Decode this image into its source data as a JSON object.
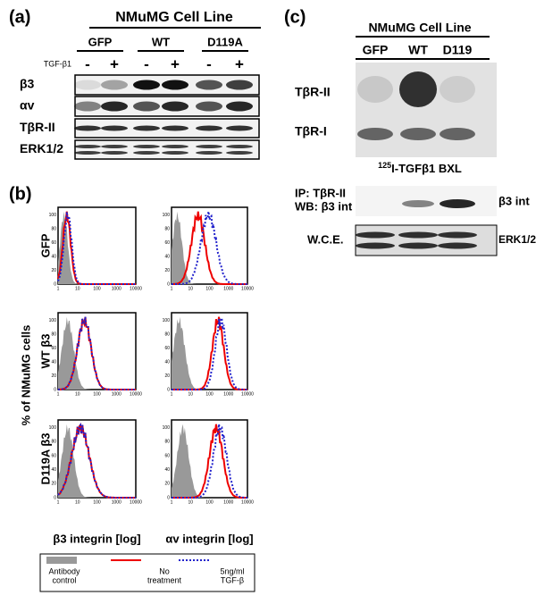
{
  "panel_a": {
    "label": "(a)",
    "title": "NMuMG Cell Line",
    "groups": [
      "GFP",
      "WT",
      "D119A"
    ],
    "treatment": "TGF-β1",
    "signs": [
      "-",
      "+",
      "-",
      "+",
      "-",
      "+"
    ],
    "rows": [
      "β3",
      "αv",
      "TβR-II",
      "ERK1/2"
    ]
  },
  "panel_b": {
    "label": "(b)",
    "y_label": "% of NMuMG cells",
    "row_labels": [
      "GFP",
      "WT β3",
      "D119A β3"
    ],
    "x_labels": [
      "β3 integrin [log]",
      "αv integrin [log]"
    ],
    "xticks": [
      "1",
      "10",
      "100",
      "1000",
      "10000"
    ],
    "yticks": [
      "0",
      "20",
      "40",
      "60",
      "80",
      "100"
    ],
    "legend": [
      {
        "lines": [
          "Antibody",
          "control"
        ]
      },
      {
        "lines": [
          "No",
          "treatment"
        ]
      },
      {
        "lines": [
          "5ng/ml",
          "TGF-β"
        ]
      }
    ]
  },
  "panel_c": {
    "label": "(c)",
    "title": "NMuMG Cell Line",
    "lanes": [
      "GFP",
      "WT",
      "D119"
    ],
    "bands": [
      "TβR-II",
      "TβR-I"
    ],
    "caption_sup": "125",
    "caption": "I-TGFβ1 BXL",
    "ip_lines": [
      "IP: TβR-II",
      "WB: β3 int"
    ],
    "ip_band": "β3 int",
    "wce": "W.C.E.",
    "wce_band": "ERK1/2"
  }
}
